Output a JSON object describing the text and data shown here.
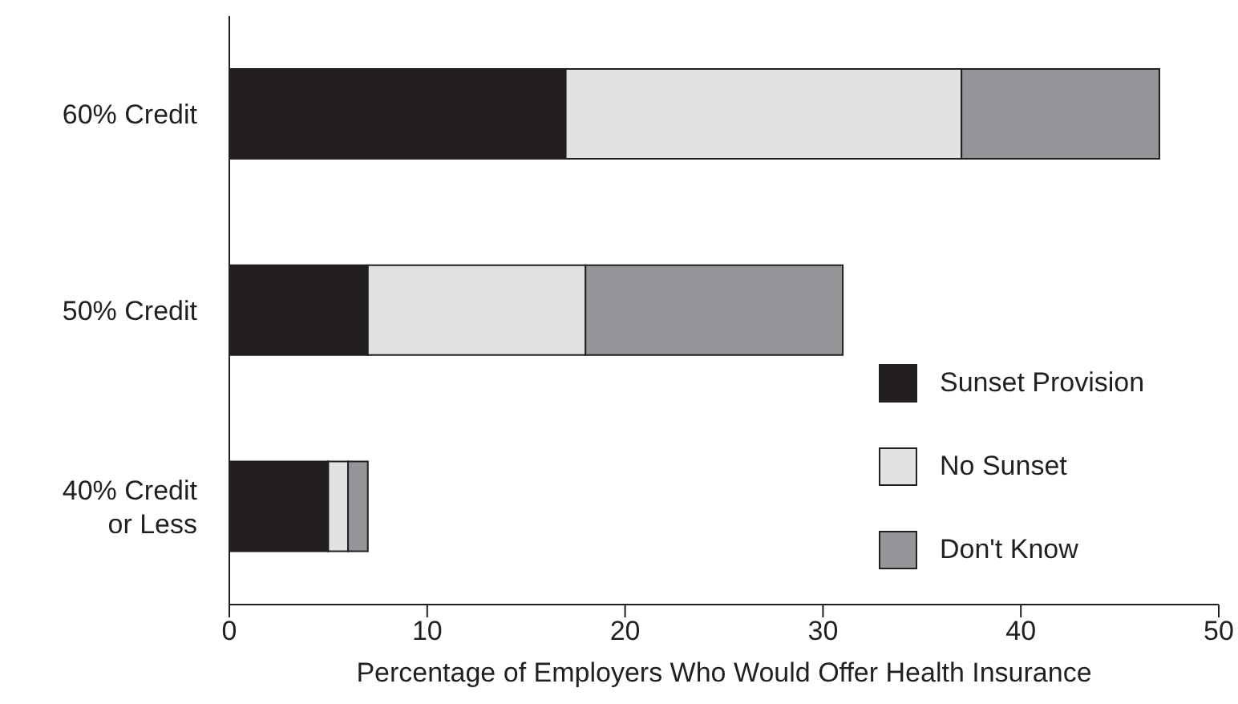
{
  "chart_data": {
    "type": "bar",
    "orientation": "horizontal",
    "stacked": true,
    "categories": [
      "60% Credit",
      "50% Credit",
      "40% Credit or Less"
    ],
    "series": [
      {
        "name": "Sunset Provision",
        "color": "#231f20",
        "values": [
          17,
          7,
          5
        ]
      },
      {
        "name": "No Sunset",
        "color": "#e1e2e3",
        "values": [
          20,
          11,
          1
        ]
      },
      {
        "name": "Don't Know",
        "color": "#939598",
        "values": [
          10,
          13,
          1
        ]
      }
    ],
    "xlabel": "Percentage of Employers Who Would Offer Health Insurance",
    "xlim": [
      0,
      50
    ],
    "xticks": [
      0,
      10,
      20,
      30,
      40,
      50
    ],
    "legend": "bottom right"
  }
}
